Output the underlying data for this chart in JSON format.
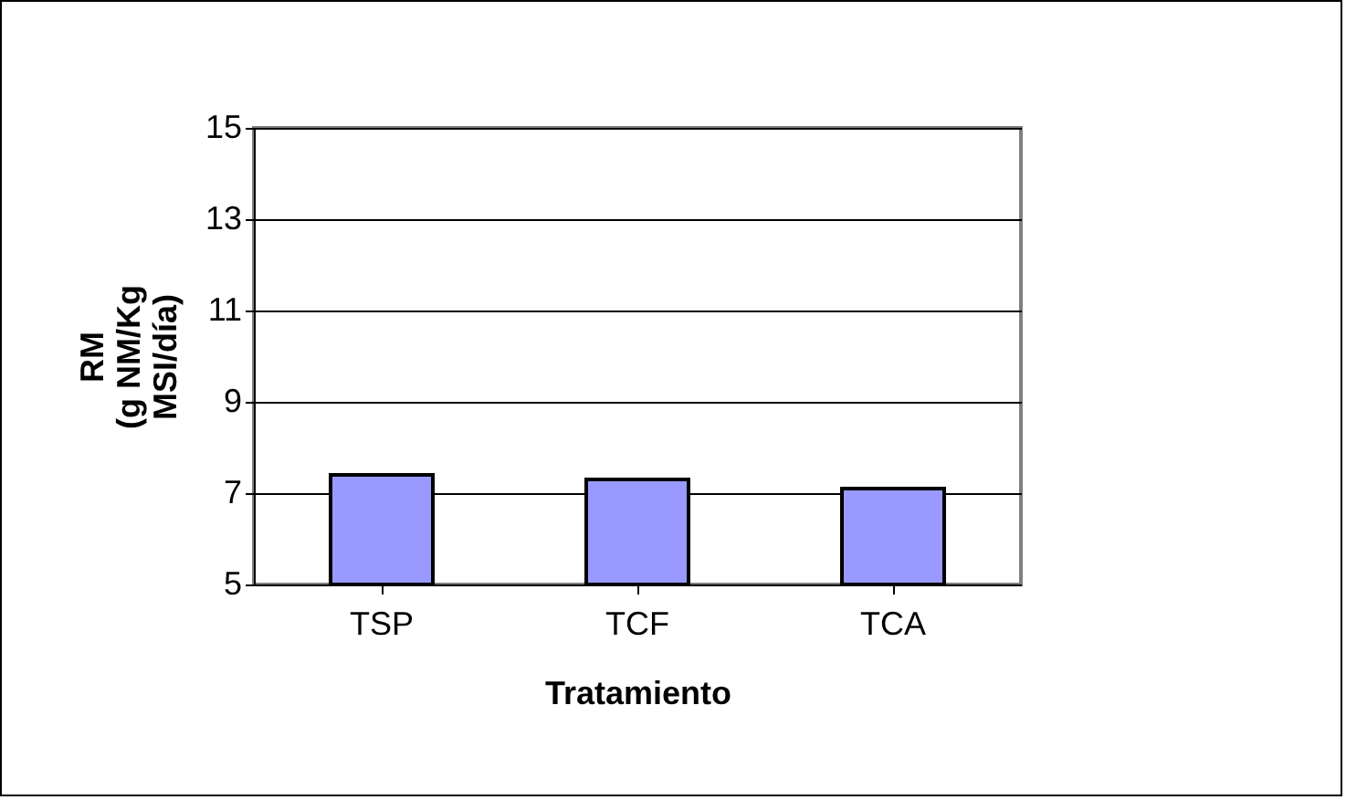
{
  "chart_data": {
    "type": "bar",
    "xlabel": "Tratamiento",
    "ylabel": "RM\n(g NM/Kg\nMSI/día)",
    "categories": [
      "TSP",
      "TCF",
      "TCA"
    ],
    "values": [
      7.4,
      7.3,
      7.1
    ],
    "color": "#9999ff",
    "ylim": [
      5,
      15
    ],
    "yticks": [
      5,
      7,
      9,
      11,
      13,
      15
    ],
    "grid": "y"
  }
}
